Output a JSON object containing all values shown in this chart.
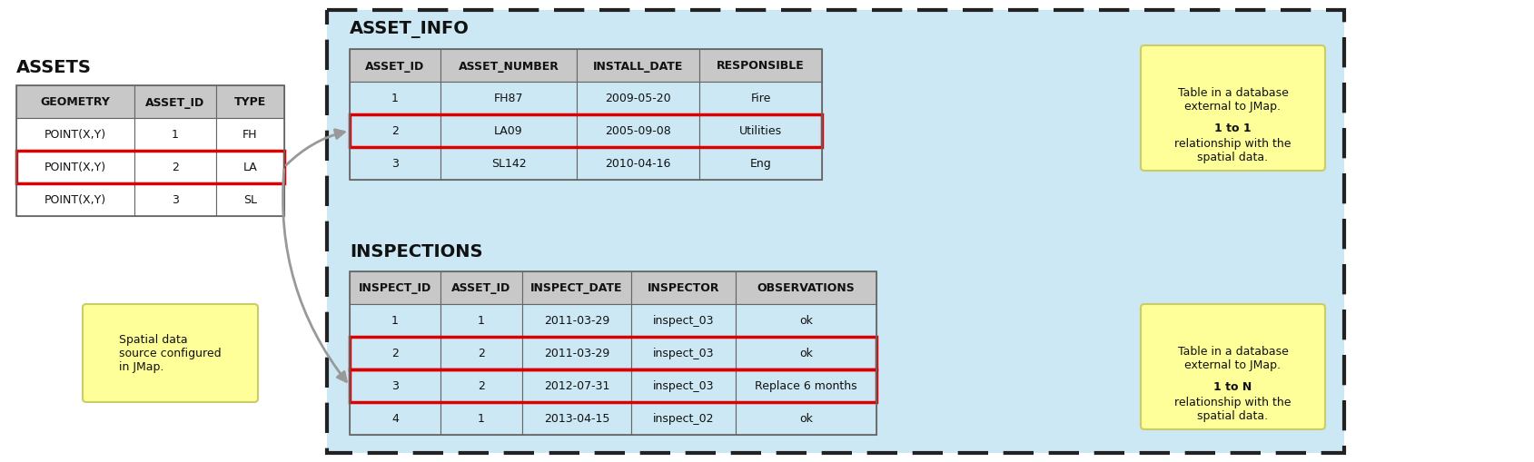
{
  "bg_color": "#ffffff",
  "assets_title": "ASSETS",
  "assets_headers": [
    "GEOMETRY",
    "ASSET_ID",
    "TYPE"
  ],
  "assets_rows": [
    [
      "POINT(X,Y)",
      "1",
      "FH"
    ],
    [
      "POINT(X,Y)",
      "2",
      "LA"
    ],
    [
      "POINT(X,Y)",
      "3",
      "SL"
    ]
  ],
  "assets_highlight_row": 1,
  "asset_info_title": "ASSET_INFO",
  "asset_info_headers": [
    "ASSET_ID",
    "ASSET_NUMBER",
    "INSTALL_DATE",
    "RESPONSIBLE"
  ],
  "asset_info_rows": [
    [
      "1",
      "FH87",
      "2009-05-20",
      "Fire"
    ],
    [
      "2",
      "LA09",
      "2005-09-08",
      "Utilities"
    ],
    [
      "3",
      "SL142",
      "2010-04-16",
      "Eng"
    ]
  ],
  "asset_info_highlight_row": 1,
  "inspections_title": "INSPECTIONS",
  "inspections_headers": [
    "INSPECT_ID",
    "ASSET_ID",
    "INSPECT_DATE",
    "INSPECTOR",
    "OBSERVATIONS"
  ],
  "inspections_rows": [
    [
      "1",
      "1",
      "2011-03-29",
      "inspect_03",
      "ok"
    ],
    [
      "2",
      "2",
      "2011-03-29",
      "inspect_03",
      "ok"
    ],
    [
      "3",
      "2",
      "2012-07-31",
      "inspect_03",
      "Replace 6 months"
    ],
    [
      "4",
      "1",
      "2013-04-15",
      "inspect_02",
      "ok"
    ]
  ],
  "inspections_highlight_rows": [
    1,
    2
  ],
  "header_bg": "#c8c8c8",
  "row_bg_white": "#ffffff",
  "row_bg_blue": "#cce8f4",
  "highlight_border": "#dd0000",
  "table_border": "#666666",
  "outer_box_bg": "#cce8f4",
  "outer_box_border": "#222222",
  "yellow_box_bg": "#ffff99",
  "yellow_box_border": "#cccc66",
  "arrow_color": "#999999",
  "title_fontsize": 14,
  "header_fontsize": 9,
  "cell_fontsize": 9,
  "note_fontsize": 9,
  "bold_text": "1 to 1",
  "bold_text2": "1 to N"
}
